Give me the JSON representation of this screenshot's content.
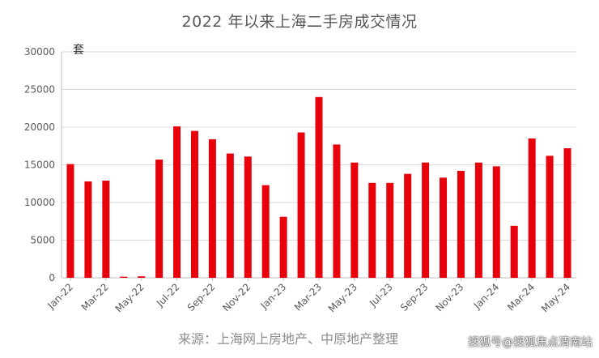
{
  "title": "2022 年以来上海二手房成交情况",
  "unit_label": "套",
  "source": "来源：上海网上房地产、中原地产整理",
  "watermark": "搜狐号@搜狐焦点清南站",
  "colors": {
    "bar": "#e8000b",
    "grid": "#d9d9d9",
    "axis": "#bfbfbf",
    "text": "#595959"
  },
  "chart_data": {
    "type": "bar",
    "title": "2022 年以来上海二手房成交情况",
    "ylabel": "套",
    "ylim": [
      0,
      30000
    ],
    "yticks": [
      0,
      5000,
      10000,
      15000,
      20000,
      25000,
      30000
    ],
    "grid": true,
    "categories": [
      "Jan-22",
      "Feb-22",
      "Mar-22",
      "Apr-22",
      "May-22",
      "Jun-22",
      "Jul-22",
      "Aug-22",
      "Sep-22",
      "Oct-22",
      "Nov-22",
      "Dec-22",
      "Jan-23",
      "Feb-23",
      "Mar-23",
      "Apr-23",
      "May-23",
      "Jun-23",
      "Jul-23",
      "Aug-23",
      "Sep-23",
      "Oct-23",
      "Nov-23",
      "Dec-23",
      "Jan-24",
      "Feb-24",
      "Mar-24",
      "Apr-24",
      "May-24"
    ],
    "xtick_labels": [
      "Jan-22",
      "Mar-22",
      "May-22",
      "Jul-22",
      "Sep-22",
      "Nov-22",
      "Jan-23",
      "Mar-23",
      "May-23",
      "Jul-23",
      "Sep-23",
      "Nov-23",
      "Jan-24",
      "Mar-24",
      "May-24"
    ],
    "values": [
      15100,
      12800,
      12900,
      150,
      200,
      15700,
      20100,
      19500,
      18400,
      16500,
      16100,
      12300,
      8100,
      19300,
      24000,
      17700,
      15300,
      12600,
      12600,
      13800,
      15300,
      13300,
      14200,
      15300,
      14800,
      6900,
      18500,
      16200,
      17200
    ]
  }
}
